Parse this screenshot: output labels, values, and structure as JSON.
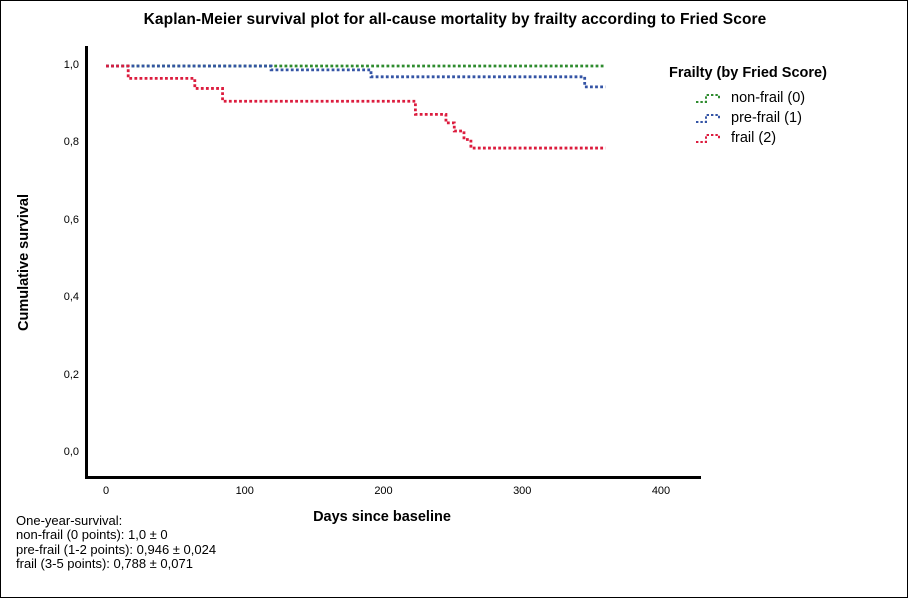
{
  "chart_data": {
    "type": "line",
    "subtype": "kaplan_meier_step_dotted",
    "title": "Kaplan-Meier survival plot for all-cause mortality by frailty according to Fried Score",
    "xlabel": "Days since baseline",
    "ylabel": "Cumulative survival",
    "xlim": [
      -14,
      428
    ],
    "ylim": [
      -0.06,
      1.06
    ],
    "xticks": [
      0,
      100,
      200,
      300,
      400
    ],
    "yticks": [
      {
        "value": 1.0,
        "label": "1,0"
      },
      {
        "value": 0.8,
        "label": "0,8"
      },
      {
        "value": 0.6,
        "label": "0,6"
      },
      {
        "value": 0.4,
        "label": "0,4"
      },
      {
        "value": 0.2,
        "label": "0,2"
      },
      {
        "value": 0.0,
        "label": "0,0"
      }
    ],
    "grid": false,
    "legend_position": "right",
    "x_end": 360,
    "series": [
      {
        "name": "non-frail-0",
        "label": "non-frail (0)",
        "color": "#2E8B2E",
        "points": [
          [
            0,
            1.0
          ]
        ]
      },
      {
        "name": "pre-frail-1",
        "label": "pre-frail (1)",
        "color": "#3454A5",
        "points": [
          [
            0,
            1.0
          ],
          [
            119,
            0.99
          ],
          [
            191,
            0.972
          ],
          [
            345,
            0.946
          ]
        ]
      },
      {
        "name": "frail-2",
        "label": "frail (2)",
        "color": "#DC1C3E",
        "points": [
          [
            0,
            1.0
          ],
          [
            16,
            0.968
          ],
          [
            64,
            0.942
          ],
          [
            84,
            0.909
          ],
          [
            223,
            0.875
          ],
          [
            245,
            0.853
          ],
          [
            251,
            0.832
          ],
          [
            258,
            0.81
          ],
          [
            263,
            0.788
          ]
        ]
      }
    ]
  },
  "legend": {
    "title": "Frailty (by Fried Score)",
    "entries": [
      {
        "label": "non-frail (0)",
        "color": "#2E8B2E"
      },
      {
        "label": "pre-frail (1)",
        "color": "#3454A5"
      },
      {
        "label": "frail (2)",
        "color": "#DC1C3E"
      }
    ]
  },
  "footnote": {
    "lines": [
      "One-year-survival:",
      "non-frail (0 points): 1,0 ± 0",
      "pre-frail (1-2 points): 0,946 ± 0,024",
      "frail (3-5 points): 0,788 ± 0,071"
    ]
  }
}
